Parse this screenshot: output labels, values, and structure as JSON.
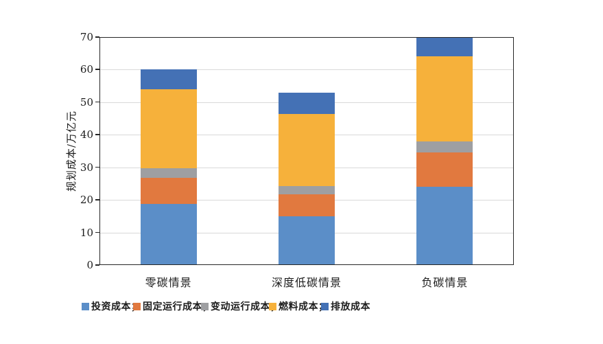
{
  "chart_data": {
    "type": "bar",
    "stacked": true,
    "title": "",
    "xlabel": "",
    "ylabel": "规划成本/万亿元",
    "ylim": [
      0,
      70
    ],
    "yticks": [
      0,
      10,
      20,
      30,
      40,
      50,
      60,
      70
    ],
    "grid": true,
    "legend_position": "bottom",
    "categories": [
      "零碳情景",
      "深度低碳情景",
      "负碳情景"
    ],
    "series": [
      {
        "id": "investment-cost",
        "name": "投资成本",
        "legend_label": "投资成本；",
        "color": "#5B8EC8",
        "values": [
          18.7,
          15.0,
          24.0
        ]
      },
      {
        "id": "fixed-om-cost",
        "name": "固定运行成本",
        "legend_label": "固定运行成本；",
        "color": "#E1793F",
        "values": [
          8.1,
          6.8,
          10.5
        ]
      },
      {
        "id": "variable-om-cost",
        "name": "变动运行成本",
        "legend_label": "变动运行成本；",
        "color": "#9E9FA2",
        "values": [
          3.0,
          2.5,
          3.5
        ]
      },
      {
        "id": "fuel-cost",
        "name": "燃料成本",
        "legend_label": "燃料成本；",
        "color": "#F6B13B",
        "values": [
          24.2,
          22.0,
          26.0
        ]
      },
      {
        "id": "emission-cost",
        "name": "排放成本",
        "legend_label": "排放成本",
        "color": "#4471B5",
        "values": [
          6.0,
          6.7,
          6.0
        ]
      }
    ],
    "totals": [
      60,
      53,
      70
    ],
    "colors": {
      "axis": "#262626",
      "gridline": "#d9d9d9",
      "text": "#1c1c1c",
      "background": "#ffffff"
    }
  }
}
